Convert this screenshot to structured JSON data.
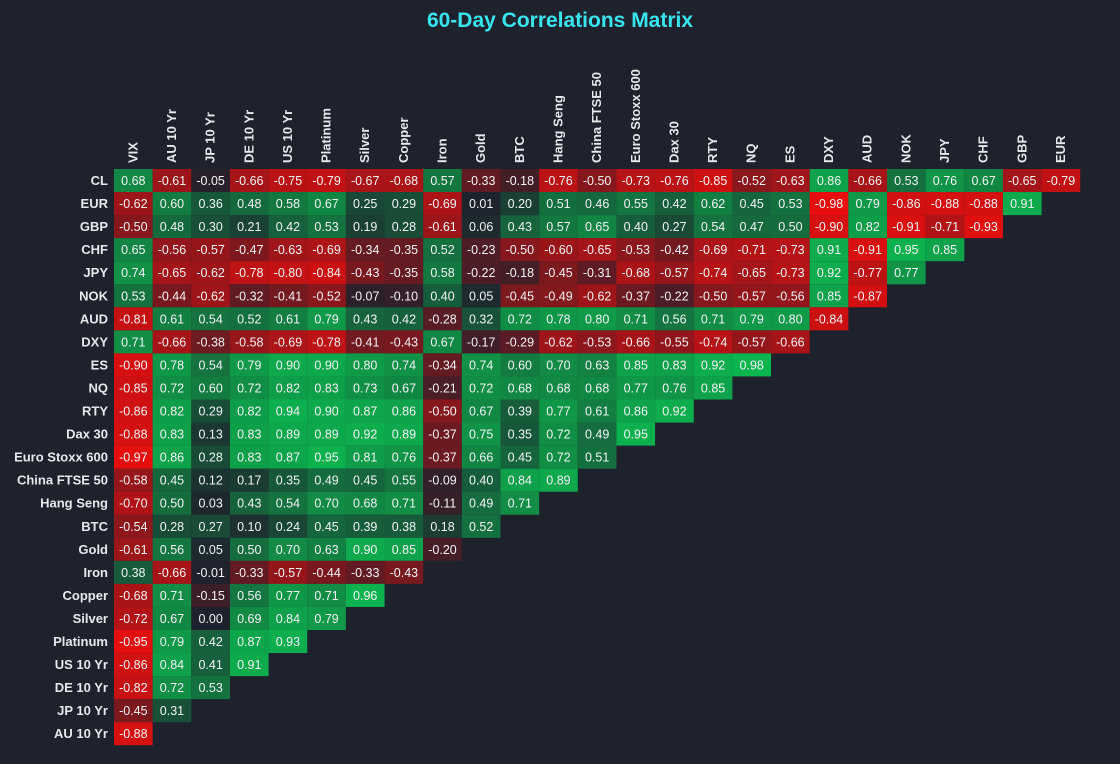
{
  "chart_data": {
    "type": "heatmap",
    "title": "60-Day Correlations Matrix",
    "columns": [
      "VIX",
      "AU 10 Yr",
      "JP 10 Yr",
      "DE 10 Yr",
      "US 10 Yr",
      "Platinum",
      "Silver",
      "Copper",
      "Iron",
      "Gold",
      "BTC",
      "Hang Seng",
      "China FTSE 50",
      "Euro Stoxx 600",
      "Dax 30",
      "RTY",
      "NQ",
      "ES",
      "DXY",
      "AUD",
      "NOK",
      "JPY",
      "CHF",
      "GBP",
      "EUR"
    ],
    "rows": [
      "CL",
      "EUR",
      "GBP",
      "CHF",
      "JPY",
      "NOK",
      "AUD",
      "DXY",
      "ES",
      "NQ",
      "RTY",
      "Dax 30",
      "Euro Stoxx 600",
      "China FTSE 50",
      "Hang Seng",
      "BTC",
      "Gold",
      "Iron",
      "Copper",
      "Silver",
      "Platinum",
      "US 10 Yr",
      "DE 10 Yr",
      "JP 10 Yr",
      "AU 10 Yr"
    ],
    "values": [
      [
        0.68,
        -0.61,
        -0.05,
        -0.66,
        -0.75,
        -0.79,
        -0.67,
        -0.68,
        0.57,
        -0.33,
        -0.18,
        -0.76,
        -0.5,
        -0.73,
        -0.76,
        -0.85,
        -0.52,
        -0.63,
        0.86,
        -0.66,
        0.53,
        0.76,
        0.67,
        -0.65,
        -0.79
      ],
      [
        -0.62,
        0.6,
        0.36,
        0.48,
        0.58,
        0.67,
        0.25,
        0.29,
        -0.69,
        0.01,
        0.2,
        0.51,
        0.46,
        0.55,
        0.42,
        0.62,
        0.45,
        0.53,
        -0.98,
        0.79,
        -0.86,
        -0.88,
        -0.88,
        0.91
      ],
      [
        -0.5,
        0.48,
        0.3,
        0.21,
        0.42,
        0.53,
        0.19,
        0.28,
        -0.61,
        0.06,
        0.43,
        0.57,
        0.65,
        0.4,
        0.27,
        0.54,
        0.47,
        0.5,
        -0.9,
        0.82,
        -0.91,
        -0.71,
        -0.93
      ],
      [
        0.65,
        -0.56,
        -0.57,
        -0.47,
        -0.63,
        -0.69,
        -0.34,
        -0.35,
        0.52,
        -0.23,
        -0.5,
        -0.6,
        -0.65,
        -0.53,
        -0.42,
        -0.69,
        -0.71,
        -0.73,
        0.91,
        -0.91,
        0.95,
        0.85
      ],
      [
        0.74,
        -0.65,
        -0.62,
        -0.78,
        -0.8,
        -0.84,
        -0.43,
        -0.35,
        0.58,
        -0.22,
        -0.18,
        -0.45,
        -0.31,
        -0.68,
        -0.57,
        -0.74,
        -0.65,
        -0.73,
        0.92,
        -0.77,
        0.77
      ],
      [
        0.53,
        -0.44,
        -0.62,
        -0.32,
        -0.41,
        -0.52,
        -0.07,
        -0.1,
        0.4,
        0.05,
        -0.45,
        -0.49,
        -0.62,
        -0.37,
        -0.22,
        -0.5,
        -0.57,
        -0.56,
        0.85,
        -0.87
      ],
      [
        -0.81,
        0.61,
        0.54,
        0.52,
        0.61,
        0.79,
        0.43,
        0.42,
        -0.28,
        0.32,
        0.72,
        0.78,
        0.8,
        0.71,
        0.56,
        0.71,
        0.79,
        0.8,
        -0.84
      ],
      [
        0.71,
        -0.66,
        -0.38,
        -0.58,
        -0.69,
        -0.78,
        -0.41,
        -0.43,
        0.67,
        -0.17,
        -0.29,
        -0.62,
        -0.53,
        -0.66,
        -0.55,
        -0.74,
        -0.57,
        -0.66
      ],
      [
        -0.9,
        0.78,
        0.54,
        0.79,
        0.9,
        0.9,
        0.8,
        0.74,
        -0.34,
        0.74,
        0.6,
        0.7,
        0.63,
        0.85,
        0.83,
        0.92,
        0.98
      ],
      [
        -0.85,
        0.72,
        0.6,
        0.72,
        0.82,
        0.83,
        0.73,
        0.67,
        -0.21,
        0.72,
        0.68,
        0.68,
        0.68,
        0.77,
        0.76,
        0.85
      ],
      [
        -0.86,
        0.82,
        0.29,
        0.82,
        0.94,
        0.9,
        0.87,
        0.86,
        -0.5,
        0.67,
        0.39,
        0.77,
        0.61,
        0.86,
        0.92
      ],
      [
        -0.88,
        0.83,
        0.13,
        0.83,
        0.89,
        0.89,
        0.92,
        0.89,
        -0.37,
        0.75,
        0.35,
        0.72,
        0.49,
        0.95
      ],
      [
        -0.97,
        0.86,
        0.28,
        0.83,
        0.87,
        0.95,
        0.81,
        0.76,
        -0.37,
        0.66,
        0.45,
        0.72,
        0.51
      ],
      [
        -0.58,
        0.45,
        0.12,
        0.17,
        0.35,
        0.49,
        0.45,
        0.55,
        -0.09,
        0.4,
        0.84,
        0.89
      ],
      [
        -0.7,
        0.5,
        0.03,
        0.43,
        0.54,
        0.7,
        0.68,
        0.71,
        -0.11,
        0.49,
        0.71
      ],
      [
        -0.54,
        0.28,
        0.27,
        0.1,
        0.24,
        0.45,
        0.39,
        0.38,
        0.18,
        0.52
      ],
      [
        -0.61,
        0.56,
        0.05,
        0.5,
        0.7,
        0.63,
        0.9,
        0.85,
        -0.2
      ],
      [
        0.38,
        -0.66,
        -0.01,
        -0.33,
        -0.57,
        -0.44,
        -0.33,
        -0.43
      ],
      [
        -0.68,
        0.71,
        -0.15,
        0.56,
        0.77,
        0.71,
        0.96
      ],
      [
        -0.72,
        0.67,
        0.0,
        0.69,
        0.84,
        0.79
      ],
      [
        -0.95,
        0.79,
        0.42,
        0.87,
        0.93
      ],
      [
        -0.86,
        0.84,
        0.41,
        0.91
      ],
      [
        -0.82,
        0.72,
        0.53
      ],
      [
        -0.45,
        0.31
      ],
      [
        -0.88
      ]
    ],
    "colors": {
      "background": "#1e222d",
      "title": "#38e5ef",
      "positive": "#0bb84f",
      "negative": "#ed0d0d",
      "neutral": "#1e222d",
      "label": "#e6e8ec"
    }
  }
}
